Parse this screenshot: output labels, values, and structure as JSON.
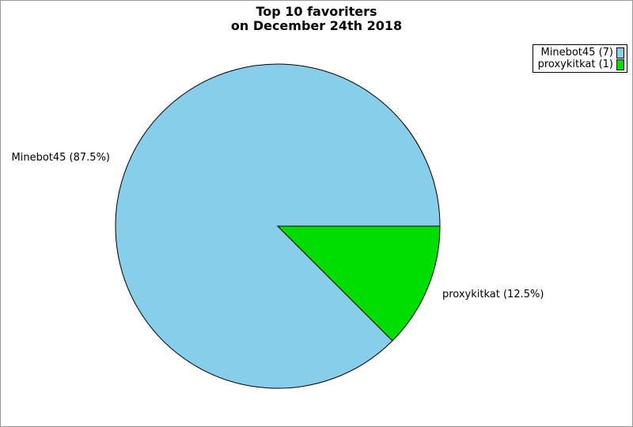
{
  "title": {
    "line1": "Top 10 favoriters",
    "line2": "on December 24th 2018"
  },
  "chart_data": {
    "type": "pie",
    "title": "Top 10 favoriters on December 24th 2018",
    "slices": [
      {
        "name": "Minebot45",
        "value": 7,
        "percent": 87.5,
        "color": "#87CEEB",
        "outside_label": "Minebot45 (87.5%)",
        "legend_label": "Minebot45 (7)"
      },
      {
        "name": "proxykitkat",
        "value": 1,
        "percent": 12.5,
        "color": "#00DD00",
        "outside_label": "proxykitkat (12.5%)",
        "legend_label": "proxykitkat (1)"
      }
    ],
    "start_angle_deg": 0,
    "direction": "counterclockwise",
    "legend_position": "top-right",
    "stroke_color": "#000000",
    "frame_color": "#999999",
    "background": "#FFFFFF"
  }
}
